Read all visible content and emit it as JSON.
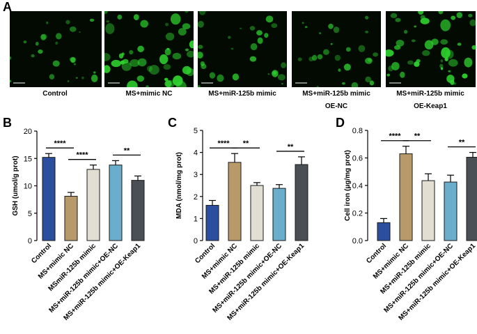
{
  "panels": {
    "a": "A",
    "b": "B",
    "c": "C",
    "d": "D"
  },
  "micrographs": [
    {
      "label_line1": "Control",
      "label_line2": "",
      "density": 0.35,
      "scale": "50 μm"
    },
    {
      "label_line1": "MS+mimic NC",
      "label_line2": "",
      "density": 1.0,
      "scale": "50 μm"
    },
    {
      "label_line1": "MS+miR-125b mimic",
      "label_line2": "",
      "density": 0.45,
      "scale": "50 μm"
    },
    {
      "label_line1": "MS+miR-125b mimic",
      "label_line2": "OE-NC",
      "density": 0.4,
      "scale": "50 μm"
    },
    {
      "label_line1": "MS+miR-125b mimic",
      "label_line2": "OE-Keap1",
      "density": 0.95,
      "scale": "50 μm"
    }
  ],
  "colors": {
    "control": "#2b4f9e",
    "mimic_nc": "#b89a6a",
    "mir125b": "#e2ded2",
    "oe_nc": "#6aaecb",
    "oe_keap1": "#4a4f55",
    "cells": "#2fd42f"
  },
  "chart_data": [
    {
      "type": "bar",
      "panel": "B",
      "categories": [
        "Control",
        "MS+mimic NC",
        "MSmiR-125b mimic",
        "MS+miR-125b mimic+OE-NC",
        "MS+miR-125b mimic+OE-Keap1"
      ],
      "values": [
        15.2,
        8.1,
        13.0,
        13.8,
        11.0
      ],
      "errors": [
        0.7,
        0.7,
        0.8,
        0.8,
        0.8
      ],
      "ylabel": "GSH (umol/g prot)",
      "ylim": [
        0,
        20
      ],
      "yticks": [
        "0",
        "5",
        "10",
        "15",
        "20"
      ],
      "significance": [
        {
          "from": 0,
          "to": 1,
          "label": "****"
        },
        {
          "from": 1,
          "to": 2,
          "label": "****"
        },
        {
          "from": 3,
          "to": 4,
          "label": "**"
        }
      ]
    },
    {
      "type": "bar",
      "panel": "C",
      "categories": [
        "Control",
        "MS+mimic NC",
        "MS+miR-125b mimic",
        "MS+miR-125b mimic+OE-NC",
        "MS+miR-125b mimic+OE-Keap1"
      ],
      "values": [
        1.6,
        3.55,
        2.5,
        2.37,
        3.45
      ],
      "errors": [
        0.22,
        0.4,
        0.13,
        0.17,
        0.35
      ],
      "ylabel": "MDA (nmol/mg prot)",
      "ylim": [
        0,
        5
      ],
      "yticks": [
        "0",
        "1",
        "2",
        "3",
        "4",
        "5"
      ],
      "significance": [
        {
          "from": 0,
          "to": 1,
          "label": "****"
        },
        {
          "from": 1,
          "to": 2,
          "label": "**"
        },
        {
          "from": 3,
          "to": 4,
          "label": "**"
        }
      ]
    },
    {
      "type": "bar",
      "panel": "D",
      "categories": [
        "Control",
        "MS+mimic NC",
        "MS+miR-125b mimic",
        "MS+miR-125b mimic+OE-NC",
        "MS+miR-125b mimic+OE-Keap1"
      ],
      "values": [
        0.13,
        0.63,
        0.435,
        0.425,
        0.605
      ],
      "errors": [
        0.03,
        0.055,
        0.05,
        0.05,
        0.035
      ],
      "ylabel": "Cell iron (μg/mg prot)",
      "ylim": [
        0,
        0.8
      ],
      "yticks": [
        "0.0",
        "0.2",
        "0.4",
        "0.6",
        "0.8"
      ],
      "significance": [
        {
          "from": 0,
          "to": 1,
          "label": "****"
        },
        {
          "from": 1,
          "to": 2,
          "label": "**"
        },
        {
          "from": 3,
          "to": 4,
          "label": "**"
        }
      ]
    }
  ]
}
